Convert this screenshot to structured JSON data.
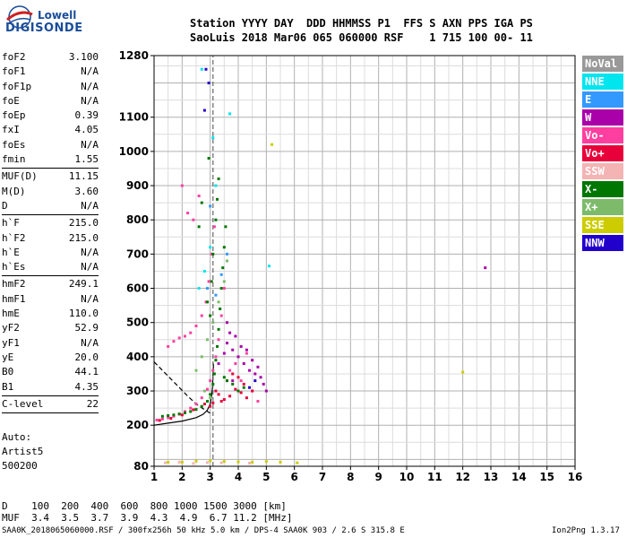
{
  "logo": {
    "line1": "Lowell",
    "line2": "DIGISONDE"
  },
  "header": {
    "line1": "Station YYYY DAY  DDD HHMMSS P1  FFS S AXN PPS IGA PS",
    "line2": "SaoLuis 2018 Mar06 065 060000 RSF    1 715 100 00- 11"
  },
  "params_groups": [
    [
      {
        "k": "foF2",
        "v": "3.100"
      },
      {
        "k": "foF1",
        "v": "N/A"
      },
      {
        "k": "foF1p",
        "v": "N/A"
      },
      {
        "k": "foE",
        "v": "N/A"
      },
      {
        "k": "foEp",
        "v": "0.39"
      },
      {
        "k": "fxI",
        "v": "4.05"
      },
      {
        "k": "foEs",
        "v": "N/A"
      },
      {
        "k": "fmin",
        "v": "1.55"
      }
    ],
    [
      {
        "k": "MUF(D)",
        "v": "11.15"
      },
      {
        "k": "M(D)",
        "v": "3.60"
      },
      {
        "k": "D",
        "v": "N/A"
      }
    ],
    [
      {
        "k": "h`F",
        "v": "215.0"
      },
      {
        "k": "h`F2",
        "v": "215.0"
      },
      {
        "k": "h`E",
        "v": "N/A"
      },
      {
        "k": "h`Es",
        "v": "N/A"
      }
    ],
    [
      {
        "k": "hmF2",
        "v": "249.1"
      },
      {
        "k": "hmF1",
        "v": "N/A"
      },
      {
        "k": "hmE",
        "v": "110.0"
      },
      {
        "k": "yF2",
        "v": "52.9"
      },
      {
        "k": "yF1",
        "v": "N/A"
      },
      {
        "k": "yE",
        "v": "20.0"
      },
      {
        "k": "B0",
        "v": "44.1"
      },
      {
        "k": "B1",
        "v": "4.35"
      }
    ],
    [
      {
        "k": "C-level",
        "v": "22"
      }
    ]
  ],
  "auto": {
    "line1": "Auto:",
    "line2": "Artist5",
    "line3": "500200"
  },
  "legend": [
    {
      "label": "NoVal",
      "color": "#999999"
    },
    {
      "label": "NNE",
      "color": "#00e5ee"
    },
    {
      "label": "E",
      "color": "#3399ff"
    },
    {
      "label": "W",
      "color": "#aa00aa"
    },
    {
      "label": "Vo-",
      "color": "#ff3fa0"
    },
    {
      "label": "Vo+",
      "color": "#e8003a"
    },
    {
      "label": "SSW",
      "color": "#f4b4b4"
    },
    {
      "label": "X-",
      "color": "#007700"
    },
    {
      "label": "X+",
      "color": "#7dbb6b"
    },
    {
      "label": "SSE",
      "color": "#cccc00"
    },
    {
      "label": "NNW",
      "color": "#2200cc"
    }
  ],
  "footer": {
    "d_row": "D    100  200  400  600  800 1000 1500 3000 [km]",
    "muf_row": "MUF  3.4  3.5  3.7  3.9  4.3  4.9  6.7 11.2 [MHz]",
    "file_line": "SAA0K_2018065060000.RSF / 300fx256h 50 kHz 5.0 km / DPS-4 SAA0K 903 / 2.6 S 315.8 E",
    "version": "Ion2Png 1.3.17"
  },
  "chart_data": {
    "type": "scatter",
    "x_ticks": [
      "1",
      "2",
      "3",
      "4",
      "5",
      "6",
      "7",
      "8",
      "9",
      "10",
      "11",
      "12",
      "13",
      "14",
      "15",
      "16"
    ],
    "y_ticks": [
      "80",
      "200",
      "300",
      "400",
      "500",
      "600",
      "700",
      "800",
      "900",
      "1000",
      "1100",
      "1280"
    ],
    "xlim": [
      1,
      16
    ],
    "ylim": [
      80,
      1280
    ],
    "grid": true,
    "legend_position": "right",
    "series": [
      {
        "color": "#ff3fa0",
        "points": [
          [
            1.1,
            215
          ],
          [
            1.3,
            218
          ],
          [
            1.5,
            222
          ],
          [
            1.7,
            226
          ],
          [
            1.9,
            232
          ],
          [
            2.1,
            240
          ],
          [
            2.3,
            250
          ],
          [
            2.5,
            262
          ],
          [
            2.7,
            280
          ],
          [
            2.9,
            305
          ],
          [
            3.0,
            330
          ],
          [
            3.1,
            360
          ],
          [
            3.2,
            400
          ],
          [
            3.3,
            450
          ],
          [
            3.4,
            520
          ],
          [
            3.5,
            600
          ],
          [
            3.6,
            680
          ],
          [
            1.5,
            430
          ],
          [
            1.7,
            445
          ],
          [
            1.9,
            455
          ],
          [
            2.1,
            460
          ],
          [
            2.3,
            470
          ],
          [
            2.5,
            490
          ],
          [
            2.7,
            520
          ],
          [
            2.85,
            560
          ],
          [
            2.95,
            620
          ],
          [
            3.05,
            700
          ],
          [
            3.15,
            780
          ],
          [
            2.4,
            800
          ],
          [
            2.6,
            870
          ],
          [
            3.7,
            360
          ],
          [
            3.9,
            380
          ],
          [
            4.1,
            330
          ],
          [
            4.3,
            410
          ],
          [
            4.5,
            300
          ],
          [
            4.7,
            270
          ],
          [
            2.2,
            820
          ],
          [
            2.0,
            900
          ]
        ]
      },
      {
        "color": "#e8003a",
        "points": [
          [
            1.2,
            214
          ],
          [
            1.6,
            220
          ],
          [
            2.0,
            230
          ],
          [
            2.4,
            245
          ],
          [
            2.8,
            262
          ],
          [
            3.2,
            300
          ],
          [
            3.3,
            290
          ],
          [
            3.5,
            275
          ],
          [
            3.7,
            285
          ],
          [
            3.9,
            305
          ],
          [
            4.1,
            295
          ],
          [
            4.3,
            280
          ],
          [
            4.5,
            300
          ],
          [
            3.6,
            330
          ],
          [
            3.8,
            350
          ],
          [
            4.0,
            340
          ],
          [
            4.2,
            320
          ],
          [
            3.4,
            270
          ],
          [
            3.1,
            265
          ],
          [
            3.0,
            255
          ]
        ]
      },
      {
        "color": "#aa00aa",
        "points": [
          [
            3.6,
            440
          ],
          [
            3.8,
            420
          ],
          [
            4.0,
            400
          ],
          [
            4.2,
            380
          ],
          [
            4.4,
            360
          ],
          [
            4.6,
            350
          ],
          [
            4.8,
            340
          ],
          [
            3.7,
            470
          ],
          [
            3.9,
            460
          ],
          [
            4.1,
            430
          ],
          [
            4.3,
            420
          ],
          [
            4.5,
            390
          ],
          [
            4.7,
            370
          ],
          [
            3.5,
            410
          ],
          [
            4.9,
            320
          ],
          [
            5.0,
            300
          ],
          [
            12.8,
            660
          ],
          [
            3.3,
            380
          ],
          [
            3.6,
            500
          ],
          [
            3.8,
            330
          ]
        ]
      },
      {
        "color": "#007700",
        "points": [
          [
            1.3,
            226
          ],
          [
            1.5,
            228
          ],
          [
            1.7,
            230
          ],
          [
            1.9,
            233
          ],
          [
            2.1,
            236
          ],
          [
            2.3,
            240
          ],
          [
            2.5,
            246
          ],
          [
            2.7,
            255
          ],
          [
            2.9,
            270
          ],
          [
            3.0,
            290
          ],
          [
            3.1,
            320
          ],
          [
            3.15,
            350
          ],
          [
            3.2,
            390
          ],
          [
            3.25,
            430
          ],
          [
            3.3,
            480
          ],
          [
            3.35,
            540
          ],
          [
            3.4,
            600
          ],
          [
            3.45,
            660
          ],
          [
            3.5,
            720
          ],
          [
            3.55,
            780
          ],
          [
            3.0,
            520
          ],
          [
            2.9,
            560
          ],
          [
            3.05,
            620
          ],
          [
            3.1,
            700
          ],
          [
            3.2,
            800
          ],
          [
            3.25,
            860
          ],
          [
            3.3,
            920
          ],
          [
            2.95,
            980
          ],
          [
            2.7,
            850
          ],
          [
            2.6,
            780
          ],
          [
            3.6,
            330
          ],
          [
            3.8,
            320
          ],
          [
            4.0,
            300
          ],
          [
            4.2,
            310
          ],
          [
            3.5,
            340
          ]
        ]
      },
      {
        "color": "#7dbb6b",
        "points": [
          [
            2.5,
            360
          ],
          [
            2.7,
            400
          ],
          [
            2.9,
            450
          ],
          [
            3.1,
            500
          ],
          [
            3.3,
            560
          ],
          [
            3.5,
            620
          ],
          [
            3.6,
            680
          ],
          [
            2.8,
            300
          ],
          [
            3.0,
            280
          ]
        ]
      },
      {
        "color": "#2200cc",
        "points": [
          [
            2.85,
            1240
          ],
          [
            2.95,
            1200
          ],
          [
            2.8,
            1120
          ],
          [
            4.6,
            330
          ],
          [
            4.4,
            310
          ]
        ]
      },
      {
        "color": "#00e5ee",
        "points": [
          [
            2.6,
            600
          ],
          [
            2.8,
            650
          ],
          [
            3.0,
            720
          ],
          [
            3.2,
            900
          ],
          [
            2.7,
            1240
          ],
          [
            3.1,
            1040
          ],
          [
            5.1,
            665
          ],
          [
            3.7,
            1110
          ]
        ]
      },
      {
        "color": "#3399ff",
        "points": [
          [
            3.2,
            580
          ],
          [
            3.4,
            640
          ],
          [
            3.6,
            700
          ],
          [
            2.9,
            600
          ],
          [
            3.0,
            840
          ]
        ]
      },
      {
        "color": "#cccc00",
        "points": [
          [
            5.2,
            1020
          ],
          [
            12.0,
            355
          ],
          [
            1.5,
            92
          ],
          [
            2.0,
            92
          ],
          [
            2.5,
            95
          ],
          [
            3.0,
            96
          ],
          [
            3.5,
            94
          ],
          [
            4.0,
            93
          ],
          [
            4.5,
            92
          ],
          [
            5.0,
            94
          ],
          [
            5.5,
            92
          ],
          [
            6.1,
            90
          ]
        ]
      },
      {
        "color": "#f4b4b4",
        "points": [
          [
            1.4,
            90
          ],
          [
            1.9,
            92
          ],
          [
            2.4,
            88
          ],
          [
            2.9,
            91
          ],
          [
            3.4,
            90
          ],
          [
            4.4,
            89
          ]
        ]
      }
    ],
    "lines": [
      {
        "style": "solid",
        "color": "#000000",
        "points": [
          [
            1.0,
            200
          ],
          [
            1.5,
            206
          ],
          [
            2.0,
            212
          ],
          [
            2.5,
            222
          ],
          [
            2.75,
            232
          ],
          [
            2.9,
            244
          ],
          [
            3.0,
            262
          ],
          [
            3.05,
            285
          ],
          [
            3.08,
            310
          ],
          [
            3.1,
            345
          ],
          [
            3.12,
            380
          ]
        ]
      },
      {
        "style": "dashed",
        "color": "#000000",
        "points": [
          [
            1.0,
            385
          ],
          [
            1.3,
            360
          ],
          [
            1.6,
            335
          ],
          [
            1.9,
            310
          ],
          [
            2.2,
            285
          ],
          [
            2.5,
            262
          ],
          [
            2.8,
            245
          ],
          [
            3.0,
            235
          ]
        ]
      },
      {
        "style": "dashed-vertical",
        "color": "#666666",
        "points": [
          [
            3.1,
            80
          ],
          [
            3.1,
            1280
          ]
        ]
      }
    ]
  }
}
